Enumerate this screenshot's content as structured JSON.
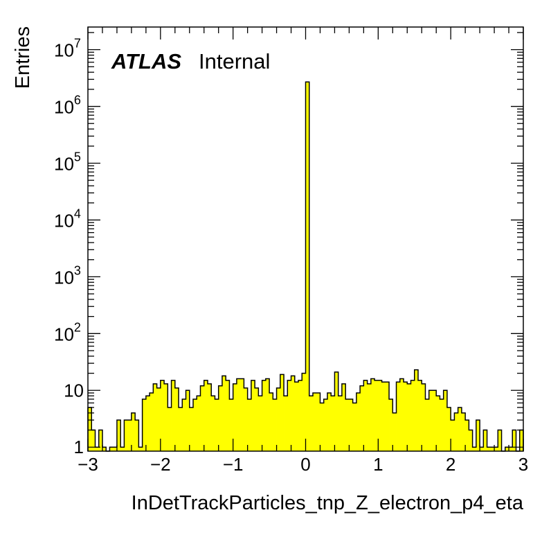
{
  "chart_data": {
    "type": "bar",
    "xlabel": "InDetTrackParticles_tnp_Z_electron_p4_eta",
    "ylabel": "Entries",
    "xlim": [
      -3,
      3
    ],
    "ylim": [
      0.85,
      25000000
    ],
    "log_y": true,
    "legend": {
      "atlas": "ATLAS",
      "status": "Internal"
    },
    "x_ticks": [
      "−3",
      "−2",
      "−1",
      "0",
      "1",
      "2",
      "3"
    ],
    "y_ticks": [
      {
        "base": "1",
        "exp": ""
      },
      {
        "base": "10",
        "exp": ""
      },
      {
        "base": "10",
        "exp": "2"
      },
      {
        "base": "10",
        "exp": "3"
      },
      {
        "base": "10",
        "exp": "4"
      },
      {
        "base": "10",
        "exp": "5"
      },
      {
        "base": "10",
        "exp": "6"
      },
      {
        "base": "10",
        "exp": "7"
      }
    ],
    "fill_color": "#ffff00",
    "line_color": "#000000",
    "bin_width": 0.1,
    "bin_low_edges": [
      -3.0,
      -2.9,
      -2.8,
      -2.7,
      -2.6,
      -2.5,
      -2.4,
      -2.3,
      -2.2,
      -2.1,
      -2.0,
      -1.9,
      -1.8,
      -1.7,
      -1.6,
      -1.5,
      -1.4,
      -1.3,
      -1.2,
      -1.1,
      -1.0,
      -0.9,
      -0.8,
      -0.7,
      -0.6,
      -0.5,
      -0.4,
      -0.3,
      -0.2,
      -0.1,
      0.0,
      0.1,
      0.2,
      0.3,
      0.4,
      0.5,
      0.6,
      0.7,
      0.8,
      0.9,
      1.0,
      1.1,
      1.2,
      1.3,
      1.4,
      1.5,
      1.6,
      1.7,
      1.8,
      1.9,
      2.0,
      2.1,
      2.2,
      2.3,
      2.4,
      2.5,
      2.6,
      2.7,
      2.8,
      2.9
    ],
    "values": [
      5,
      2,
      1,
      2,
      0,
      1,
      1,
      3,
      2,
      3,
      4,
      3,
      7,
      8,
      13,
      15,
      13,
      15,
      11,
      5,
      7,
      10,
      5,
      7,
      8,
      8,
      15,
      13,
      7,
      13,
      2700000,
      8,
      9,
      6,
      7,
      9,
      13,
      10,
      13,
      7,
      11,
      5,
      8,
      5,
      7,
      14,
      16,
      15,
      15,
      13,
      16,
      11,
      13,
      6,
      15,
      9,
      15,
      4,
      8,
      13
    ],
    "bins_fine": [
      [
        -3.0,
        5
      ],
      [
        -2.95,
        2
      ],
      [
        -2.9,
        1
      ],
      [
        -2.85,
        2
      ],
      [
        -2.8,
        1
      ],
      [
        -2.75,
        0
      ],
      [
        -2.7,
        1
      ],
      [
        -2.65,
        1
      ],
      [
        -2.6,
        3
      ],
      [
        -2.55,
        1
      ],
      [
        -2.5,
        3
      ],
      [
        -2.45,
        3
      ],
      [
        -2.4,
        4
      ],
      [
        -2.35,
        3
      ],
      [
        -2.3,
        1
      ],
      [
        -2.25,
        7
      ],
      [
        -2.2,
        8
      ],
      [
        -2.15,
        9
      ],
      [
        -2.1,
        13
      ],
      [
        -2.05,
        11
      ],
      [
        -2.0,
        15
      ],
      [
        -1.95,
        13
      ],
      [
        -1.9,
        5
      ],
      [
        -1.85,
        15
      ],
      [
        -1.8,
        11
      ],
      [
        -1.75,
        5
      ],
      [
        -1.7,
        7
      ],
      [
        -1.65,
        10
      ],
      [
        -1.6,
        5
      ],
      [
        -1.55,
        7
      ],
      [
        -1.5,
        8
      ],
      [
        -1.45,
        12
      ],
      [
        -1.4,
        15
      ],
      [
        -1.35,
        13
      ],
      [
        -1.3,
        8
      ],
      [
        -1.25,
        7
      ],
      [
        -1.2,
        12
      ],
      [
        -1.15,
        18
      ],
      [
        -1.1,
        15
      ],
      [
        -1.05,
        7
      ],
      [
        -1.0,
        13
      ],
      [
        -0.95,
        16
      ],
      [
        -0.9,
        16
      ],
      [
        -0.85,
        11
      ],
      [
        -0.8,
        7
      ],
      [
        -0.75,
        15
      ],
      [
        -0.7,
        11
      ],
      [
        -0.65,
        8
      ],
      [
        -0.6,
        15
      ],
      [
        -0.55,
        16
      ],
      [
        -0.5,
        9
      ],
      [
        -0.45,
        7
      ],
      [
        -0.4,
        11
      ],
      [
        -0.35,
        19
      ],
      [
        -0.3,
        8
      ],
      [
        -0.25,
        15
      ],
      [
        -0.2,
        18
      ],
      [
        -0.15,
        14
      ],
      [
        -0.1,
        15
      ],
      [
        -0.05,
        20
      ],
      [
        0.0,
        2700000
      ],
      [
        0.05,
        8
      ],
      [
        0.1,
        9
      ],
      [
        0.15,
        9
      ],
      [
        0.2,
        6
      ],
      [
        0.25,
        7
      ],
      [
        0.3,
        9
      ],
      [
        0.35,
        8
      ],
      [
        0.4,
        21
      ],
      [
        0.45,
        8
      ],
      [
        0.5,
        13
      ],
      [
        0.55,
        7
      ],
      [
        0.6,
        7
      ],
      [
        0.65,
        6
      ],
      [
        0.7,
        9
      ],
      [
        0.75,
        12
      ],
      [
        0.8,
        15
      ],
      [
        0.85,
        13
      ],
      [
        0.9,
        16
      ],
      [
        0.95,
        15
      ],
      [
        1.0,
        15
      ],
      [
        1.05,
        14
      ],
      [
        1.1,
        14
      ],
      [
        1.15,
        7
      ],
      [
        1.2,
        4
      ],
      [
        1.25,
        14
      ],
      [
        1.3,
        16
      ],
      [
        1.35,
        14
      ],
      [
        1.4,
        13
      ],
      [
        1.45,
        15
      ],
      [
        1.5,
        23
      ],
      [
        1.55,
        15
      ],
      [
        1.6,
        13
      ],
      [
        1.65,
        7
      ],
      [
        1.7,
        10
      ],
      [
        1.75,
        10
      ],
      [
        1.8,
        8
      ],
      [
        1.85,
        7
      ],
      [
        1.9,
        10
      ],
      [
        1.95,
        5
      ],
      [
        2.0,
        3
      ],
      [
        2.05,
        4
      ],
      [
        2.1,
        5
      ],
      [
        2.15,
        4
      ],
      [
        2.2,
        3
      ],
      [
        2.25,
        2
      ],
      [
        2.3,
        1
      ],
      [
        2.35,
        3
      ],
      [
        2.4,
        1
      ],
      [
        2.45,
        2
      ],
      [
        2.5,
        1
      ],
      [
        2.55,
        1
      ],
      [
        2.6,
        1
      ],
      [
        2.65,
        2
      ],
      [
        2.7,
        0
      ],
      [
        2.75,
        1
      ],
      [
        2.8,
        1
      ],
      [
        2.85,
        2
      ],
      [
        2.9,
        0
      ],
      [
        2.95,
        2
      ]
    ]
  }
}
